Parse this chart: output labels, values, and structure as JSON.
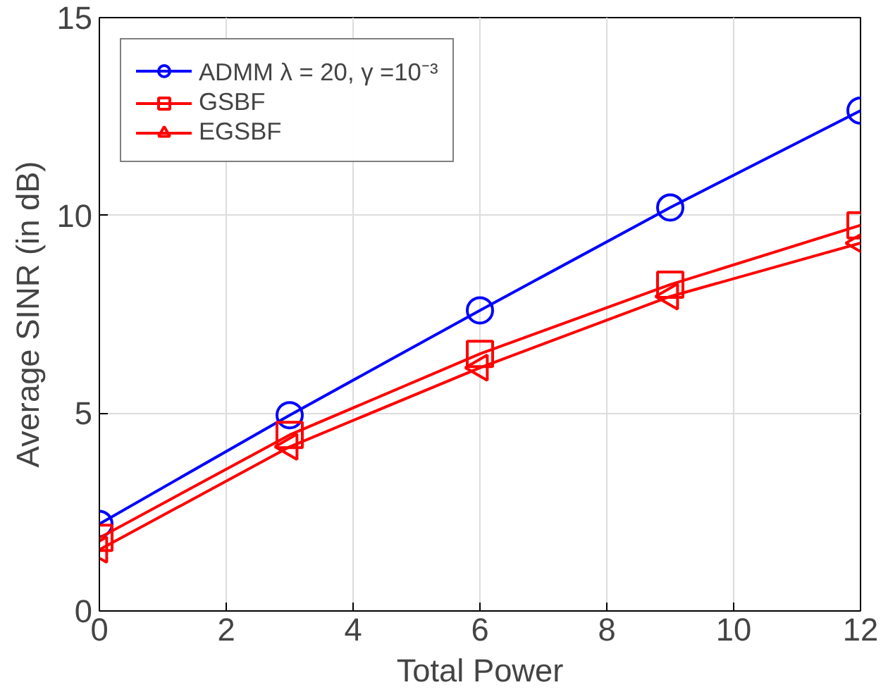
{
  "chart_data": {
    "type": "line",
    "xlabel": "Total Power",
    "ylabel": "Average SINR (in dB)",
    "x": [
      0,
      3,
      6,
      9,
      12
    ],
    "series": [
      {
        "name": "ADMM λ = 20, γ =10⁻³",
        "color": "#0000ff",
        "marker": "circle",
        "values": [
          2.2,
          4.95,
          7.6,
          10.2,
          12.65
        ]
      },
      {
        "name": "GSBF",
        "color": "#ff0000",
        "marker": "square",
        "values": [
          1.85,
          4.45,
          6.5,
          8.25,
          9.75
        ]
      },
      {
        "name": "EGSBF",
        "color": "#ff0000",
        "marker": "triangle",
        "values": [
          1.55,
          4.15,
          6.15,
          7.95,
          9.3
        ]
      }
    ],
    "xlim": [
      0,
      12
    ],
    "xticks": [
      0,
      2,
      4,
      6,
      8,
      10,
      12
    ],
    "ylim": [
      0,
      15
    ],
    "yticks": [
      0,
      5,
      10,
      15
    ],
    "grid": true,
    "legend": "top left",
    "line_style": "solid"
  }
}
